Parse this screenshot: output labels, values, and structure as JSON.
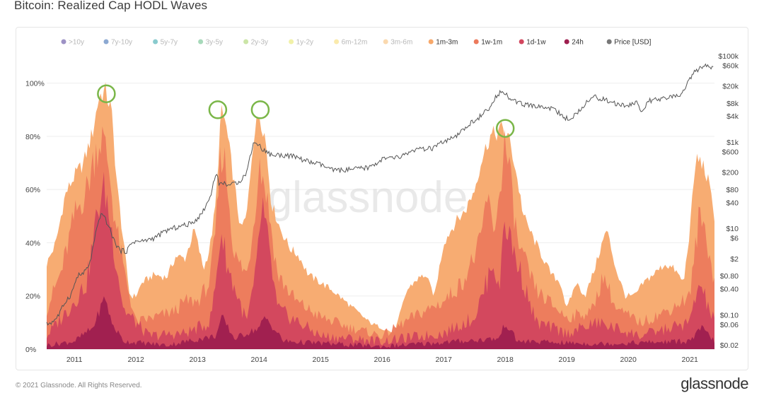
{
  "title": "Bitcoin: Realized Cap HODL Waves",
  "watermark": "glassnode",
  "footer": {
    "copyright": "© 2021 Glassnode. All Rights Reserved.",
    "brand": "glassnode"
  },
  "chart_data": {
    "type": "area",
    "title": "Bitcoin: Realized Cap HODL Waves",
    "legend": [
      {
        "label": ">10y",
        "color": "#5b4a9e",
        "faded": true
      },
      {
        "label": "7y-10y",
        "color": "#3f6fb4",
        "faded": true
      },
      {
        "label": "5y-7y",
        "color": "#3aa8ae",
        "faded": true
      },
      {
        "label": "3y-5y",
        "color": "#6dc08c",
        "faded": true
      },
      {
        "label": "2y-3y",
        "color": "#a9d46c",
        "faded": true
      },
      {
        "label": "1y-2y",
        "color": "#e8e86e",
        "faded": true
      },
      {
        "label": "6m-12m",
        "color": "#f7dc74",
        "faded": true
      },
      {
        "label": "3m-6m",
        "color": "#f6c07a",
        "faded": true
      },
      {
        "label": "1m-3m",
        "color": "#f7a86a",
        "faded": false
      },
      {
        "label": "1w-1m",
        "color": "#ec7a5c",
        "faded": false
      },
      {
        "label": "1d-1w",
        "color": "#d2465e",
        "faded": false
      },
      {
        "label": "24h",
        "color": "#9e1f4f",
        "faded": false
      },
      {
        "label": "Price [USD]",
        "color": "#777777",
        "faded": false
      }
    ],
    "x_ticks": [
      "2011",
      "2012",
      "2013",
      "2014",
      "2015",
      "2016",
      "2017",
      "2018",
      "2019",
      "2020",
      "2021"
    ],
    "left_axis": {
      "ticks": [
        "0%",
        "20%",
        "40%",
        "60%",
        "80%",
        "100%"
      ],
      "values": [
        0,
        20,
        40,
        60,
        80,
        100
      ]
    },
    "right_axis": {
      "labels": [
        "$0.02",
        "$0.06",
        "$0.10",
        "$0.40",
        "$0.80",
        "$2",
        "$6",
        "$10",
        "$40",
        "$80",
        "$200",
        "$600",
        "$1k",
        "$4k",
        "$8k",
        "$20k",
        "$60k",
        "$100k"
      ],
      "values": [
        0.02,
        0.06,
        0.1,
        0.4,
        0.8,
        2,
        6,
        10,
        40,
        80,
        200,
        600,
        1000,
        4000,
        8000,
        20000,
        60000,
        100000
      ]
    },
    "x_range": [
      2010.55,
      2021.4
    ],
    "series": [
      {
        "name": "1m-3m (cumulative top)",
        "color": "#f7a86a",
        "x": [
          2010.55,
          2010.7,
          2010.85,
          2011.0,
          2011.15,
          2011.3,
          2011.4,
          2011.5,
          2011.6,
          2011.7,
          2011.8,
          2011.9,
          2012.0,
          2012.1,
          2012.3,
          2012.5,
          2012.65,
          2012.8,
          2012.95,
          2013.1,
          2013.2,
          2013.3,
          2013.38,
          2013.45,
          2013.55,
          2013.7,
          2013.8,
          2013.9,
          2014.0,
          2014.1,
          2014.2,
          2014.35,
          2014.5,
          2014.65,
          2014.8,
          2015.0,
          2015.2,
          2015.4,
          2015.6,
          2015.8,
          2016.0,
          2016.2,
          2016.4,
          2016.55,
          2016.7,
          2016.85,
          2017.0,
          2017.1,
          2017.2,
          2017.35,
          2017.5,
          2017.6,
          2017.75,
          2017.85,
          2017.95,
          2018.05,
          2018.15,
          2018.3,
          2018.45,
          2018.6,
          2018.75,
          2018.9,
          2019.0,
          2019.15,
          2019.3,
          2019.45,
          2019.55,
          2019.65,
          2019.8,
          2019.95,
          2020.1,
          2020.25,
          2020.4,
          2020.6,
          2020.75,
          2020.9,
          2021.0,
          2021.1,
          2021.2,
          2021.3,
          2021.4
        ],
        "values": [
          32,
          40,
          58,
          65,
          70,
          82,
          95,
          97,
          90,
          60,
          40,
          20,
          20,
          25,
          28,
          27,
          35,
          34,
          45,
          30,
          38,
          55,
          89,
          86,
          70,
          45,
          50,
          78,
          89,
          80,
          55,
          45,
          38,
          35,
          28,
          25,
          22,
          18,
          14,
          10,
          8,
          6,
          22,
          26,
          28,
          20,
          40,
          44,
          48,
          52,
          60,
          70,
          80,
          81,
          83,
          80,
          70,
          50,
          42,
          35,
          28,
          25,
          15,
          25,
          20,
          30,
          38,
          45,
          30,
          20,
          20,
          25,
          28,
          32,
          30,
          25,
          45,
          72,
          70,
          63,
          50
        ]
      },
      {
        "name": "1w-1m (cumulative top)",
        "color": "#ec7a5c",
        "x": [
          2010.55,
          2010.8,
          2011.0,
          2011.2,
          2011.35,
          2011.45,
          2011.55,
          2011.65,
          2011.8,
          2012.0,
          2012.3,
          2012.6,
          2012.8,
          2013.0,
          2013.2,
          2013.3,
          2013.38,
          2013.45,
          2013.6,
          2013.8,
          2013.9,
          2014.0,
          2014.1,
          2014.3,
          2014.6,
          2015.0,
          2015.5,
          2016.0,
          2016.5,
          2017.0,
          2017.3,
          2017.6,
          2017.7,
          2017.8,
          2017.9,
          2017.98,
          2018.05,
          2018.2,
          2018.5,
          2019.0,
          2019.4,
          2019.6,
          2019.8,
          2020.2,
          2020.6,
          2021.0,
          2021.15,
          2021.25,
          2021.4
        ],
        "values": [
          15,
          30,
          50,
          60,
          75,
          80,
          70,
          50,
          30,
          10,
          12,
          14,
          18,
          18,
          25,
          45,
          75,
          70,
          35,
          28,
          45,
          70,
          62,
          28,
          18,
          12,
          8,
          5,
          12,
          18,
          25,
          40,
          58,
          45,
          55,
          78,
          70,
          40,
          22,
          12,
          14,
          28,
          15,
          10,
          14,
          20,
          50,
          45,
          25
        ]
      },
      {
        "name": "1d-1w (cumulative top)",
        "color": "#d2465e",
        "x": [
          2010.55,
          2010.9,
          2011.2,
          2011.4,
          2011.5,
          2011.6,
          2011.8,
          2012.2,
          2012.8,
          2013.2,
          2013.3,
          2013.38,
          2013.5,
          2013.8,
          2013.95,
          2014.05,
          2014.3,
          2015.0,
          2016.0,
          2017.0,
          2017.5,
          2017.7,
          2017.8,
          2017.9,
          2017.98,
          2018.1,
          2018.5,
          2019.0,
          2019.5,
          2020.2,
          2021.0,
          2021.15,
          2021.4
        ],
        "values": [
          5,
          15,
          25,
          55,
          60,
          45,
          15,
          5,
          6,
          10,
          25,
          45,
          30,
          10,
          28,
          55,
          15,
          5,
          3,
          6,
          12,
          25,
          35,
          20,
          50,
          40,
          10,
          6,
          10,
          5,
          10,
          25,
          10
        ]
      },
      {
        "name": "24h (cumulative top)",
        "color": "#9e1f4f",
        "x": [
          2010.55,
          2011.0,
          2011.3,
          2011.5,
          2011.6,
          2011.8,
          2012.5,
          2013.3,
          2013.4,
          2013.6,
          2014.0,
          2014.1,
          2014.4,
          2016.0,
          2017.9,
          2018.0,
          2018.2,
          2019.5,
          2021.0,
          2021.2,
          2021.4
        ],
        "values": [
          1.5,
          3,
          8,
          20,
          10,
          3,
          1.5,
          5,
          12,
          4,
          8,
          12,
          3,
          1,
          4,
          10,
          3,
          2,
          3,
          8,
          3
        ]
      }
    ],
    "price": {
      "name": "Price [USD]",
      "color": "#555555",
      "x": [
        2010.55,
        2010.65,
        2010.75,
        2010.85,
        2010.95,
        2011.05,
        2011.15,
        2011.25,
        2011.35,
        2011.45,
        2011.5,
        2011.55,
        2011.65,
        2011.75,
        2011.85,
        2011.95,
        2012.1,
        2012.3,
        2012.5,
        2012.7,
        2012.9,
        2013.05,
        2013.2,
        2013.3,
        2013.35,
        2013.45,
        2013.55,
        2013.7,
        2013.8,
        2013.9,
        2013.95,
        2014.05,
        2014.2,
        2014.4,
        2014.6,
        2014.8,
        2015.0,
        2015.2,
        2015.5,
        2015.8,
        2016.0,
        2016.3,
        2016.5,
        2016.8,
        2017.0,
        2017.2,
        2017.4,
        2017.6,
        2017.75,
        2017.85,
        2017.95,
        2018.05,
        2018.2,
        2018.4,
        2018.6,
        2018.8,
        2018.95,
        2019.1,
        2019.3,
        2019.45,
        2019.6,
        2019.8,
        2020.0,
        2020.15,
        2020.2,
        2020.35,
        2020.5,
        2020.7,
        2020.85,
        2021.0,
        2021.1,
        2021.2,
        2021.3,
        2021.38
      ],
      "values": [
        0.06,
        0.07,
        0.1,
        0.2,
        0.3,
        0.8,
        0.9,
        1.5,
        8,
        25,
        16,
        12,
        5,
        3,
        3,
        5,
        5,
        6,
        9,
        11,
        13,
        20,
        50,
        200,
        110,
        110,
        100,
        130,
        200,
        900,
        1000,
        700,
        500,
        500,
        450,
        350,
        300,
        220,
        230,
        260,
        400,
        450,
        650,
        700,
        1000,
        1300,
        2500,
        4000,
        6000,
        11000,
        17000,
        11000,
        8000,
        7000,
        6500,
        6000,
        3500,
        3700,
        8000,
        11000,
        10000,
        7500,
        7000,
        8500,
        5000,
        9000,
        9500,
        11000,
        12000,
        30000,
        45000,
        55000,
        58000,
        50000
      ]
    },
    "highlight_markers": [
      {
        "x": 2011.52,
        "y": 96
      },
      {
        "x": 2013.33,
        "y": 90
      },
      {
        "x": 2014.02,
        "y": 90
      },
      {
        "x": 2018.0,
        "y": 83
      }
    ]
  }
}
